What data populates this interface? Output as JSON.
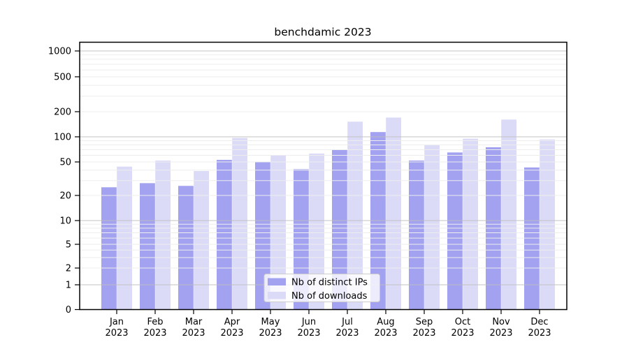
{
  "chart_data": {
    "type": "bar",
    "title": "benchdamic 2023",
    "categories": [
      "Jan",
      "Feb",
      "Mar",
      "Apr",
      "May",
      "Jun",
      "Jul",
      "Aug",
      "Sep",
      "Oct",
      "Nov",
      "Dec"
    ],
    "category_year": "2023",
    "series": [
      {
        "name": "Nb of distinct IPs",
        "color": "#a2a2f0",
        "values": [
          25,
          28,
          26,
          53,
          50,
          41,
          70,
          114,
          52,
          65,
          75,
          43
        ]
      },
      {
        "name": "Nb of downloads",
        "color": "#dbdbf7",
        "values": [
          44,
          52,
          39,
          97,
          60,
          63,
          152,
          170,
          80,
          95,
          161,
          93
        ]
      }
    ],
    "yscale": "symlog",
    "y_tick_labels": [
      "1000",
      "500",
      "200",
      "100",
      "50",
      "20",
      "10",
      "5",
      "2",
      "1",
      "0"
    ],
    "y_tick_values": [
      1000,
      500,
      200,
      100,
      50,
      20,
      10,
      5,
      2,
      1,
      0
    ],
    "grid": true,
    "legend_position": "lower center"
  },
  "legend": {
    "items": [
      {
        "label": "Nb of distinct IPs",
        "color": "#a2a2f0"
      },
      {
        "label": "Nb of downloads",
        "color": "#dbdbf7"
      }
    ]
  },
  "colors": {
    "background": "#ffffff",
    "bar_ips": "#a2a2f0",
    "bar_downloads": "#dbdbf7",
    "axis": "#000000",
    "grid_major": "#bdbdbd",
    "grid_minor": "#ededed",
    "legend_border": "#cccccc"
  }
}
